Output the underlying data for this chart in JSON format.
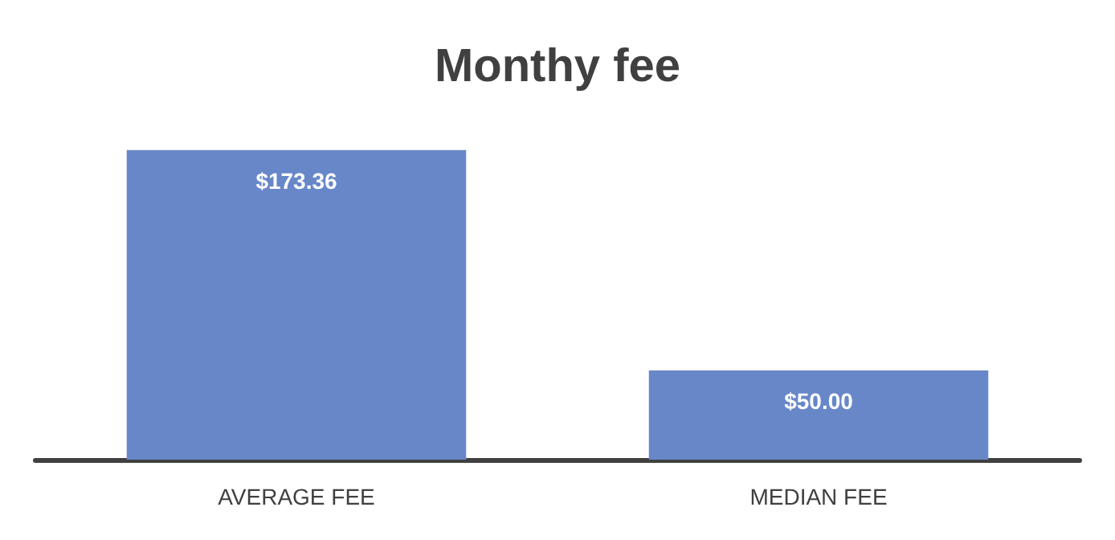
{
  "chart_data": {
    "type": "bar",
    "title": "Monthy fee",
    "categories": [
      "AVERAGE FEE",
      "MEDIAN FEE"
    ],
    "values": [
      173.36,
      50
    ],
    "value_labels": [
      "$173.36",
      "$50.00"
    ],
    "color": "#6887c9"
  }
}
